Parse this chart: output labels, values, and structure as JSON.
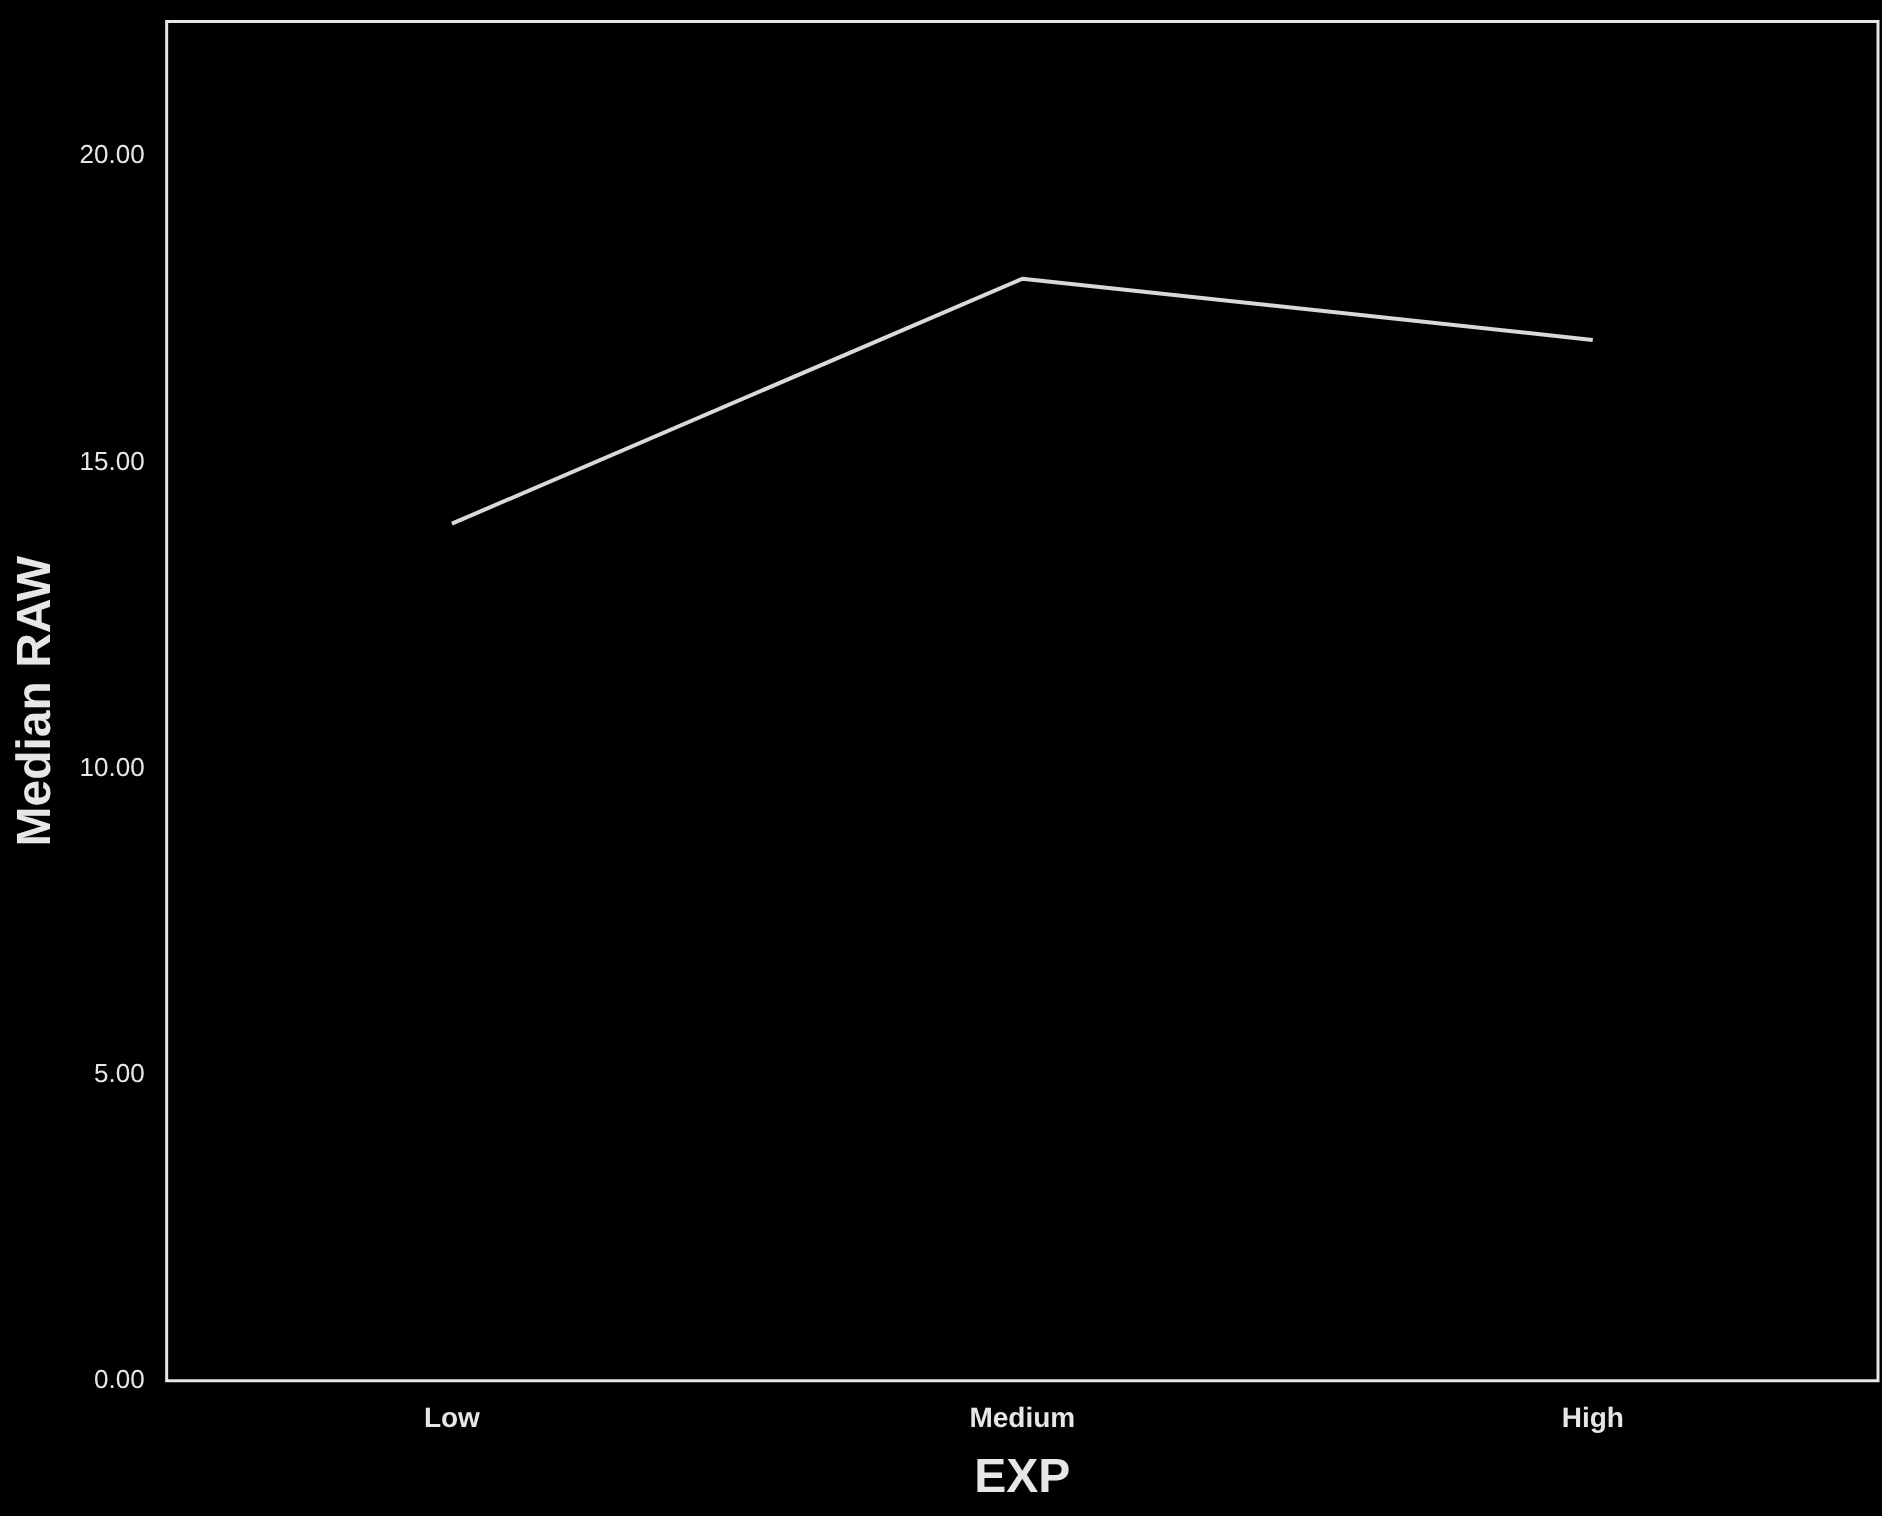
{
  "chart_data": {
    "type": "line",
    "xlabel": "EXP",
    "ylabel": "Median RAW",
    "categories": [
      "Low",
      "Medium",
      "High"
    ],
    "series": [
      {
        "color": "#d9d9d9",
        "values": [
          14,
          18,
          17
        ]
      }
    ],
    "ylim": [
      0,
      22.2
    ],
    "yticks": [
      {
        "value": 0,
        "label": "0.00"
      },
      {
        "value": 5,
        "label": "5.00"
      },
      {
        "value": 10,
        "label": "10.00"
      },
      {
        "value": 15,
        "label": "15.00"
      },
      {
        "value": 20,
        "label": "20.00"
      }
    ],
    "grid": false,
    "legend": false,
    "marker": "none",
    "line_style": "solid"
  }
}
